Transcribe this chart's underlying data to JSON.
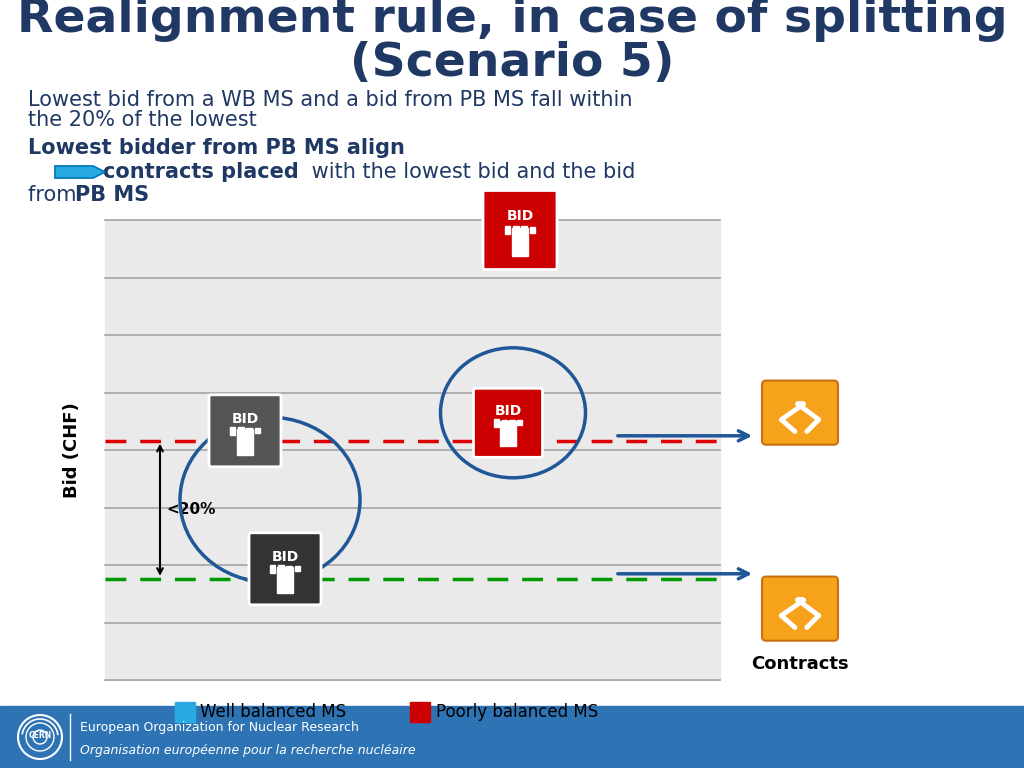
{
  "title_line1": "Realignment rule, in case of splitting",
  "title_line2": "(Scenario 5)",
  "title_color": "#1F3864",
  "subtitle_color": "#1F3864",
  "footer_bg": "#2E74B5",
  "footer_text1": "European Organization for Nuclear Research",
  "footer_text2": "Organisation européenne pour la recherche nucléaire",
  "footer_text_color": "#FFFFFF",
  "background_color": "#FFFFFF",
  "red_dashed_color": "#DD0000",
  "green_dashed_color": "#009900",
  "blue_circle_color": "#1F5799",
  "arrow_blue_fill": "#29ABE2",
  "arrow_blue_edge": "#007AB8",
  "wb_legend_color": "#29ABE2",
  "pb_legend_color": "#CC0000",
  "bid_wb_color1": "#555555",
  "bid_wb_color2": "#333333",
  "bid_pb_color": "#CC0000",
  "contracts_arrow_color": "#1F5799",
  "handshake_color": "#F7A21B",
  "ylabel": "Bid (CHF)",
  "legend_wb": "Well balanced MS",
  "legend_pb": "Poorly balanced MS",
  "contracts_label": "Contracts",
  "title_fontsize": 34,
  "subtitle_fontsize": 15,
  "bullet_fontsize": 15
}
